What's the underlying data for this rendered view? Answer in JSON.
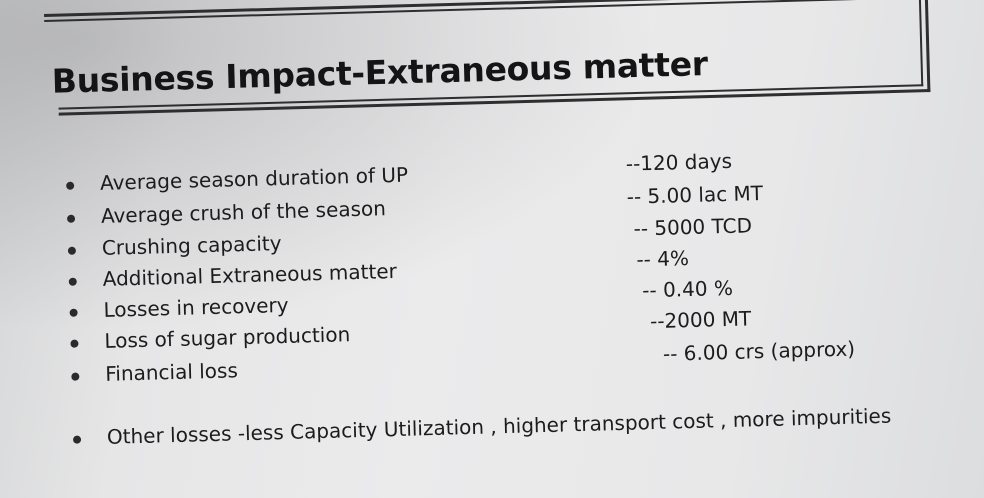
{
  "slide": {
    "title": "Business Impact-Extraneous matter",
    "items": [
      {
        "label": "Average season duration of UP",
        "value": "--120  days"
      },
      {
        "label": "Average crush of the season",
        "value": "-- 5.00 lac  MT"
      },
      {
        "label": "Crushing capacity",
        "value": "--   5000 TCD"
      },
      {
        "label": "Additional Extraneous matter",
        "value": "-- 4%"
      },
      {
        "label": "Losses   in recovery",
        "value": "--  0.40 %"
      },
      {
        "label": "Loss of sugar production",
        "value": "--2000 MT"
      },
      {
        "label": "Financial loss",
        "value": "-- 6.00 crs (approx)"
      }
    ],
    "other": {
      "text": "Other losses  -less Capacity Utilization  , higher transport cost , more impurities"
    }
  }
}
